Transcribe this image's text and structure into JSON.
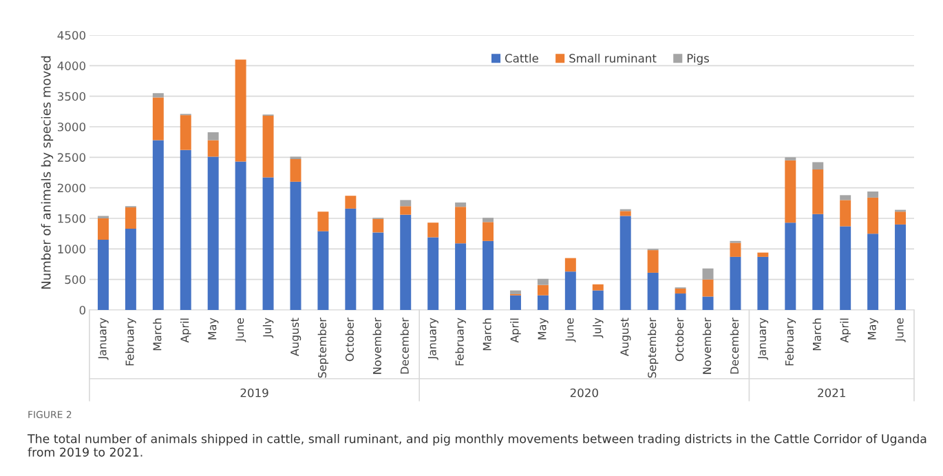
{
  "chart_data": {
    "type": "bar",
    "stacked": true,
    "ylabel": "Number of animals by species moved",
    "categories": [
      "January",
      "February",
      "March",
      "April",
      "May",
      "June",
      "July",
      "August",
      "September",
      "October",
      "November",
      "December",
      "January",
      "February",
      "March",
      "April",
      "May",
      "June",
      "July",
      "August",
      "September",
      "October",
      "November",
      "December",
      "January",
      "February",
      "March",
      "April",
      "May",
      "June"
    ],
    "series": [
      {
        "name": "Cattle",
        "color": "#4472c4",
        "values": [
          1150,
          1330,
          2780,
          2620,
          2510,
          2430,
          2170,
          2100,
          1290,
          1660,
          1270,
          1560,
          1190,
          1090,
          1130,
          240,
          240,
          630,
          320,
          1540,
          610,
          270,
          220,
          870,
          870,
          1430,
          1570,
          1370,
          1250,
          1400
        ]
      },
      {
        "name": "Small ruminant",
        "color": "#ed7d31",
        "values": [
          350,
          350,
          700,
          570,
          270,
          1670,
          1010,
          370,
          320,
          210,
          220,
          140,
          240,
          600,
          310,
          20,
          170,
          220,
          100,
          80,
          370,
          80,
          280,
          230,
          70,
          1020,
          730,
          430,
          590,
          210
        ]
      },
      {
        "name": "Pigs",
        "color": "#a5a5a5",
        "values": [
          40,
          20,
          70,
          20,
          130,
          0,
          20,
          40,
          0,
          0,
          20,
          100,
          0,
          70,
          70,
          60,
          100,
          0,
          0,
          30,
          20,
          20,
          180,
          30,
          0,
          50,
          120,
          80,
          100,
          30
        ]
      }
    ],
    "ylim": [
      0,
      4500
    ],
    "yticks": [
      0,
      500,
      1000,
      1500,
      2000,
      2500,
      3000,
      3500,
      4000,
      4500
    ],
    "grid": "y",
    "legend": "top",
    "annotations": [
      "2019",
      "2020",
      "2021",
      "FIGURE 2",
      "The total number of animals shipped in cattle, small ruminant, and pig monthly movements between trading districts in the Cattle Corridor of Uganda from 2019 to 2021."
    ]
  }
}
